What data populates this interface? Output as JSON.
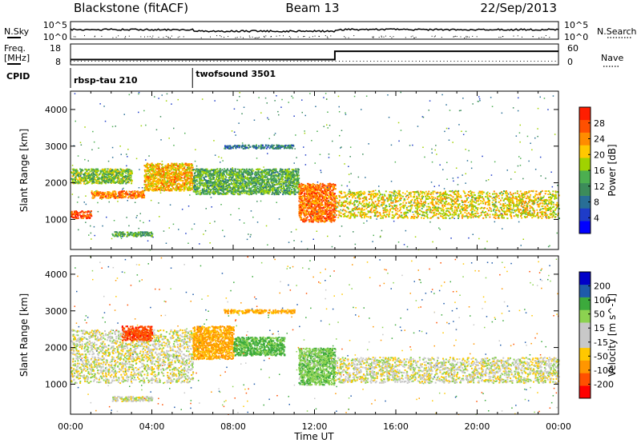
{
  "header": {
    "station": "Blackstone (fitACF)",
    "beam": "Beam 13",
    "date": "22/Sep/2013"
  },
  "noise_panel": {
    "left_label": "N.Sky",
    "right_label": "N.Search",
    "tick_top": "10^5",
    "tick_bottom": "10^0"
  },
  "freq_panel": {
    "label_line1": "Freq.",
    "label_line2": "[MHz]",
    "right_label": "Nave",
    "left_ticks": [
      "18",
      "8"
    ],
    "right_ticks": [
      "60",
      "0"
    ],
    "freq_mhz": [
      {
        "t": 0,
        "v": 10.5
      },
      {
        "t": 6,
        "v": 10.5
      },
      {
        "t": 13,
        "v": 10.5
      },
      {
        "t": 13,
        "v": 14.5
      },
      {
        "t": 24,
        "v": 14.5
      }
    ]
  },
  "cpid": {
    "label": "CPID",
    "segments": [
      {
        "start_hour": 0,
        "name": "rbsp-tau 210"
      },
      {
        "start_hour": 6,
        "name": "twofsound 3501"
      }
    ]
  },
  "chart_data": [
    {
      "type": "heatmap",
      "title": "Power",
      "ylabel": "Slant Range [km]",
      "xlabel": "Time UT",
      "xlim": [
        0,
        24
      ],
      "ylim": [
        180,
        4500
      ],
      "colorbar_label": "Power [dB]",
      "colorbar_ticks": [
        "4",
        "8",
        "12",
        "16",
        "20",
        "24",
        "28"
      ],
      "colors": [
        "#0000ff",
        "#1e3cc8",
        "#286e96",
        "#3c8c5a",
        "#4caf50",
        "#a0d200",
        "#ffc800",
        "#ff8c00",
        "#ff5000",
        "#ff1e00"
      ],
      "features": [
        {
          "t_start": 0.0,
          "t_end": 1.0,
          "range_km": [
            1050,
            1250
          ],
          "level": 28
        },
        {
          "t_start": 1.0,
          "t_end": 3.6,
          "range_km": [
            1600,
            1800
          ],
          "level": 25
        },
        {
          "t_start": 3.6,
          "t_end": 6.0,
          "range_km": [
            1800,
            2550
          ],
          "level": 22
        },
        {
          "t_start": 0.0,
          "t_end": 3.0,
          "range_km": [
            2000,
            2400
          ],
          "level": 16
        },
        {
          "t_start": 2.0,
          "t_end": 4.0,
          "range_km": [
            550,
            680
          ],
          "level": 14
        },
        {
          "t_start": 6.0,
          "t_end": 11.2,
          "range_km": [
            1700,
            2400
          ],
          "level": 14
        },
        {
          "t_start": 7.5,
          "t_end": 11.0,
          "range_km": [
            2950,
            3050
          ],
          "level": 9
        },
        {
          "t_start": 11.2,
          "t_end": 13.0,
          "range_km": [
            950,
            2000
          ],
          "level": 26
        },
        {
          "t_start": 13.0,
          "t_end": 24.0,
          "range_km": [
            1050,
            1800
          ],
          "level": 20
        }
      ]
    },
    {
      "type": "heatmap",
      "title": "Velocity",
      "ylabel": "Slant Range [km]",
      "xlabel": "Time UT",
      "xlim": [
        0,
        24
      ],
      "ylim": [
        180,
        4500
      ],
      "colorbar_label": "Velocity [m s-1]",
      "colorbar_ticks": [
        "-200",
        "-100",
        "-50",
        "-15",
        "15",
        "50",
        "100",
        "200"
      ],
      "colors": [
        "#ff0000",
        "#ff5000",
        "#ff9600",
        "#ffc800",
        "#c8c8c8",
        "#c8c8c8",
        "#8cd250",
        "#3caa3c",
        "#1e5aaa",
        "#0000c8"
      ],
      "features": [
        {
          "t_start": 0.0,
          "t_end": 6.0,
          "range_km": [
            1050,
            2500
          ],
          "velocity": 0
        },
        {
          "t_start": 2.5,
          "t_end": 4.0,
          "range_km": [
            2200,
            2600
          ],
          "velocity": -180
        },
        {
          "t_start": 2.0,
          "t_end": 4.0,
          "range_km": [
            550,
            680
          ],
          "velocity": 0
        },
        {
          "t_start": 6.0,
          "t_end": 8.0,
          "range_km": [
            1700,
            2600
          ],
          "velocity": -60
        },
        {
          "t_start": 8.0,
          "t_end": 10.5,
          "range_km": [
            1800,
            2300
          ],
          "velocity": 60
        },
        {
          "t_start": 7.5,
          "t_end": 11.0,
          "range_km": [
            2950,
            3050
          ],
          "velocity": -60
        },
        {
          "t_start": 11.2,
          "t_end": 13.0,
          "range_km": [
            1000,
            2000
          ],
          "velocity": 40
        },
        {
          "t_start": 13.0,
          "t_end": 24.0,
          "range_km": [
            1050,
            1750
          ],
          "velocity": 0
        }
      ]
    }
  ],
  "axes": {
    "y_ticks": [
      "1000",
      "2000",
      "3000",
      "4000"
    ],
    "x_ticks": [
      "00:00",
      "04:00",
      "08:00",
      "12:00",
      "16:00",
      "20:00",
      "00:00"
    ],
    "xlabel": "Time UT",
    "ylabel": "Slant Range [km]",
    "power_colorbar_title": "Power [dB]",
    "velocity_colorbar_title": "Velocity [m s^-1]"
  }
}
